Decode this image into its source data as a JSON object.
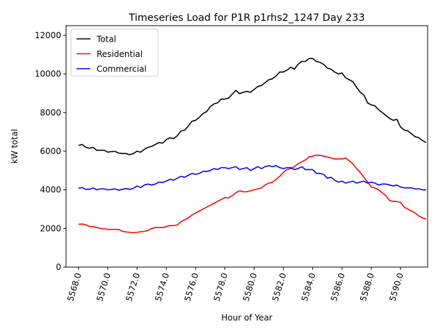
{
  "chart_data": {
    "type": "line",
    "title": "Timeseries Load for P1R p1rhs2_1247  Day 233",
    "xlabel": "Hour of Year",
    "ylabel": "kW total",
    "xlim": [
      5567.15,
      5591.85
    ],
    "ylim": [
      0,
      12500
    ],
    "x_ticks": [
      5568,
      5570,
      5572,
      5574,
      5576,
      5578,
      5580,
      5582,
      5584,
      5586,
      5588,
      5590
    ],
    "x_tick_labels": [
      "5568.0",
      "5570.0",
      "5572.0",
      "5574.0",
      "5576.0",
      "5578.0",
      "5580.0",
      "5582.0",
      "5584.0",
      "5586.0",
      "5588.0",
      "5590.0"
    ],
    "y_ticks": [
      0,
      2000,
      4000,
      6000,
      8000,
      10000,
      12000
    ],
    "y_tick_labels": [
      "0",
      "2000",
      "4000",
      "6000",
      "8000",
      "10000",
      "12000"
    ],
    "grid": false,
    "legend_position": "top-left",
    "x": [
      5568.0,
      5568.25,
      5568.5,
      5568.75,
      5569.0,
      5569.25,
      5569.5,
      5569.75,
      5570.0,
      5570.25,
      5570.5,
      5570.75,
      5571.0,
      5571.25,
      5571.5,
      5571.75,
      5572.0,
      5572.25,
      5572.5,
      5572.75,
      5573.0,
      5573.25,
      5573.5,
      5573.75,
      5574.0,
      5574.25,
      5574.5,
      5574.75,
      5575.0,
      5575.25,
      5575.5,
      5575.75,
      5576.0,
      5576.25,
      5576.5,
      5576.75,
      5577.0,
      5577.25,
      5577.5,
      5577.75,
      5578.0,
      5578.25,
      5578.5,
      5578.75,
      5579.0,
      5579.25,
      5579.5,
      5579.75,
      5580.0,
      5580.25,
      5580.5,
      5580.75,
      5581.0,
      5581.25,
      5581.5,
      5581.75,
      5582.0,
      5582.25,
      5582.5,
      5582.75,
      5583.0,
      5583.25,
      5583.5,
      5583.75,
      5584.0,
      5584.25,
      5584.5,
      5584.75,
      5585.0,
      5585.25,
      5585.5,
      5585.75,
      5586.0,
      5586.25,
      5586.5,
      5586.75,
      5587.0,
      5587.25,
      5587.5,
      5587.75,
      5588.0,
      5588.25,
      5588.5,
      5588.75,
      5589.0,
      5589.25,
      5589.5,
      5589.75,
      5590.0,
      5590.25,
      5590.5,
      5590.75,
      5591.0,
      5591.25,
      5591.5,
      5591.75
    ],
    "series": [
      {
        "name": "Total",
        "color": "#000000",
        "values": [
          6300,
          6350,
          6200,
          6150,
          6200,
          6050,
          6050,
          6050,
          5950,
          5980,
          5990,
          5900,
          5880,
          5880,
          5820,
          5880,
          6000,
          5950,
          6100,
          6200,
          6250,
          6350,
          6450,
          6420,
          6600,
          6700,
          6650,
          6800,
          7050,
          7080,
          7300,
          7550,
          7600,
          7750,
          7950,
          8050,
          8300,
          8450,
          8500,
          8700,
          8700,
          8750,
          8950,
          9150,
          8980,
          9050,
          9100,
          9050,
          9200,
          9350,
          9400,
          9550,
          9700,
          9750,
          9900,
          10100,
          10100,
          10200,
          10350,
          10250,
          10500,
          10650,
          10650,
          10800,
          10800,
          10650,
          10600,
          10500,
          10300,
          10250,
          10100,
          10000,
          10050,
          9800,
          9700,
          9600,
          9300,
          9050,
          8900,
          8500,
          8400,
          8350,
          8150,
          8000,
          7850,
          7700,
          7600,
          7650,
          7250,
          7100,
          7050,
          6900,
          6750,
          6700,
          6550,
          6450
        ]
      },
      {
        "name": "Residential",
        "color": "#ff0000",
        "values": [
          2220,
          2230,
          2190,
          2100,
          2100,
          2050,
          2000,
          1980,
          1950,
          1950,
          1950,
          1950,
          1850,
          1820,
          1800,
          1780,
          1800,
          1830,
          1850,
          1900,
          2000,
          2050,
          2050,
          2050,
          2100,
          2150,
          2150,
          2180,
          2350,
          2450,
          2550,
          2700,
          2800,
          2900,
          3000,
          3100,
          3200,
          3300,
          3400,
          3500,
          3600,
          3580,
          3700,
          3850,
          3950,
          3900,
          3900,
          3950,
          4000,
          4050,
          4100,
          4250,
          4350,
          4400,
          4550,
          4700,
          4900,
          5050,
          5100,
          5200,
          5350,
          5450,
          5550,
          5700,
          5750,
          5800,
          5780,
          5750,
          5700,
          5650,
          5600,
          5600,
          5600,
          5650,
          5500,
          5350,
          5100,
          4900,
          4650,
          4400,
          4150,
          4100,
          4000,
          3850,
          3700,
          3450,
          3400,
          3400,
          3350,
          3100,
          3000,
          2900,
          2800,
          2650,
          2550,
          2480
        ]
      },
      {
        "name": "Commercial",
        "color": "#0000ff",
        "values": [
          4080,
          4120,
          4020,
          4030,
          4100,
          4000,
          4050,
          4050,
          4000,
          4020,
          4050,
          3980,
          4030,
          4070,
          4020,
          4080,
          4200,
          4120,
          4250,
          4300,
          4250,
          4300,
          4400,
          4380,
          4450,
          4550,
          4500,
          4600,
          4700,
          4650,
          4750,
          4850,
          4800,
          4850,
          4950,
          4950,
          5000,
          5100,
          5050,
          5150,
          5150,
          5100,
          5150,
          5200,
          5050,
          5100,
          5150,
          5000,
          5100,
          5200,
          5100,
          5200,
          5250,
          5200,
          5250,
          5150,
          5100,
          5150,
          5150,
          5050,
          5100,
          5200,
          5050,
          5050,
          5050,
          4850,
          4850,
          4800,
          4600,
          4650,
          4500,
          4400,
          4450,
          4350,
          4400,
          4450,
          4350,
          4400,
          4450,
          4350,
          4400,
          4350,
          4250,
          4300,
          4300,
          4250,
          4200,
          4250,
          4150,
          4100,
          4100,
          4100,
          4050,
          4050,
          4000,
          4000
        ]
      }
    ]
  }
}
